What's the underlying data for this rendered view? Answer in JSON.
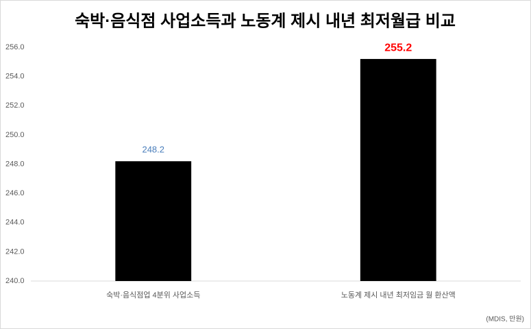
{
  "chart_data": {
    "type": "bar",
    "title": "숙박·음식점 사업소득과 노동계 제시 내년 최저월급 비교",
    "categories": [
      "숙박·음식점업 4분위 사업소득",
      "노동계 제시 내년 최저임금 월 환산액"
    ],
    "values": [
      248.2,
      255.2
    ],
    "color": "#000000",
    "value_label_colors": [
      "#4a7ebb",
      "#ff0000"
    ],
    "ylim": [
      240,
      256
    ],
    "yticks": [
      {
        "value": 240,
        "label": "240.0"
      },
      {
        "value": 242,
        "label": "242.0"
      },
      {
        "value": 244,
        "label": "244.0"
      },
      {
        "value": 246,
        "label": "246.0"
      },
      {
        "value": 248,
        "label": "248.0"
      },
      {
        "value": 250,
        "label": "250.0"
      },
      {
        "value": 252,
        "label": "252.0"
      },
      {
        "value": 254,
        "label": "254.0"
      },
      {
        "value": 256,
        "label": "256.0"
      }
    ],
    "grid": false,
    "source": "(MDIS, 만원)"
  }
}
